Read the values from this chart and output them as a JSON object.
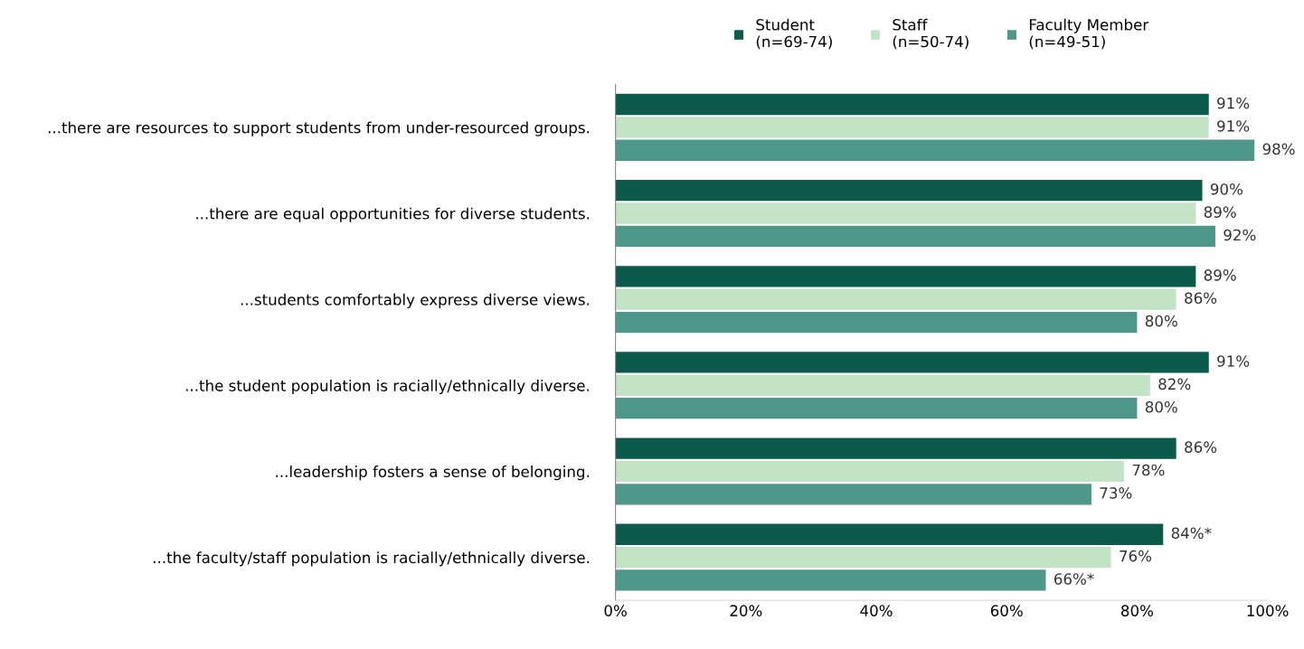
{
  "chart_data": {
    "type": "bar",
    "orientation": "horizontal",
    "categories": [
      "...there are resources to support students from under-resourced groups.",
      "...there are equal opportunities for diverse students.",
      "...students comfortably express diverse views.",
      "...the student population is racially/ethnically diverse.",
      "...leadership fosters a sense of belonging.",
      "...the faculty/staff population is racially/ethnically diverse."
    ],
    "series": [
      {
        "name": "Student\n(n=69-74)",
        "color": "#0b5a4b",
        "values": [
          91,
          90,
          89,
          91,
          86,
          84
        ],
        "value_labels": [
          "91%",
          "90%",
          "89%",
          "91%",
          "86%",
          "84%*"
        ]
      },
      {
        "name": "Staff\n(n=50-74)",
        "color": "#c3e3c6",
        "values": [
          91,
          89,
          86,
          82,
          78,
          76
        ],
        "value_labels": [
          "91%",
          "89%",
          "86%",
          "82%",
          "78%",
          "76%"
        ]
      },
      {
        "name": "Faculty Member\n(n=49-51)",
        "color": "#4f978a",
        "values": [
          98,
          92,
          80,
          80,
          73,
          66
        ],
        "value_labels": [
          "98%",
          "92%",
          "80%",
          "80%",
          "73%",
          "66%*"
        ]
      }
    ],
    "xlim": [
      0,
      100
    ],
    "xticks": [
      {
        "value": 0,
        "label": "0%"
      },
      {
        "value": 20,
        "label": "20%"
      },
      {
        "value": 40,
        "label": "40%"
      },
      {
        "value": 60,
        "label": "60%"
      },
      {
        "value": 80,
        "label": "80%"
      },
      {
        "value": 100,
        "label": "100%"
      }
    ],
    "grid": false,
    "legend": "top"
  }
}
